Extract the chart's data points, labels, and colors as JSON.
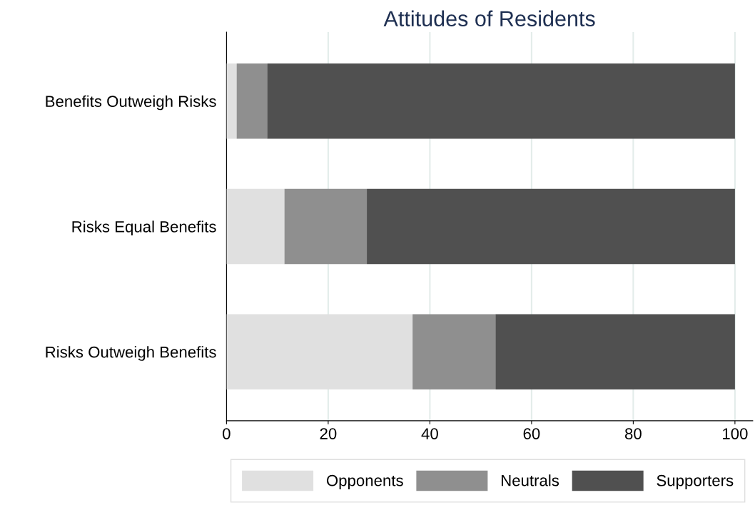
{
  "chart_data": {
    "type": "bar",
    "title": "Attitudes of Residents",
    "orientation": "horizontal",
    "stacked": true,
    "categories": [
      "Benefits Outweigh Risks",
      "Risks Equal Benefits",
      "Risks Outweigh Benefits"
    ],
    "series": [
      {
        "name": "Opponents",
        "color": "#e0e0e0",
        "values": [
          2.0,
          11.4,
          36.6
        ]
      },
      {
        "name": "Neutrals",
        "color": "#8f8f8f",
        "values": [
          6.0,
          16.2,
          16.3
        ]
      },
      {
        "name": "Supporters",
        "color": "#505050",
        "values": [
          92.0,
          72.4,
          47.1
        ]
      }
    ],
    "xlim": [
      0,
      103.5
    ],
    "xticks": [
      0,
      20,
      40,
      60,
      80,
      100
    ],
    "grid": "x",
    "legend": "bottom"
  }
}
